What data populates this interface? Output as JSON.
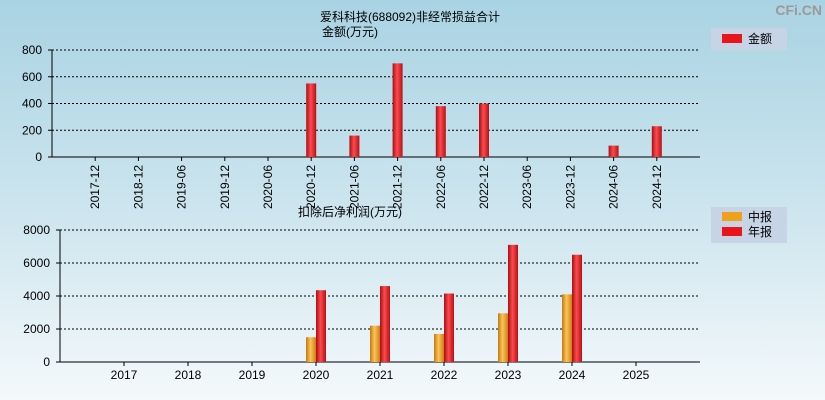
{
  "watermark": "CFi.CN",
  "colors": {
    "annual": "#e8151b",
    "interim": "#f0a11c",
    "legend_bg": "#c7d4e6"
  },
  "chart_data": [
    {
      "type": "bar",
      "title": "爱科科技(688092)非经常损益合计",
      "subtitle": "金额(万元)",
      "categories": [
        "2017-12",
        "2018-12",
        "2019-06",
        "2019-12",
        "2020-06",
        "2020-12",
        "2021-06",
        "2021-12",
        "2022-06",
        "2022-12",
        "2023-06",
        "2023-12",
        "2024-06",
        "2024-12"
      ],
      "series": [
        {
          "name": "金额",
          "values": [
            0,
            0,
            0,
            0,
            0,
            550,
            160,
            700,
            380,
            400,
            0,
            0,
            85,
            230
          ]
        }
      ],
      "ylim": [
        0,
        800
      ],
      "yticks": [
        "0",
        "200",
        "400",
        "600",
        "800"
      ],
      "grid": true,
      "legend": "top-right"
    },
    {
      "type": "bar",
      "title": "扣除后净利润(万元)",
      "categories": [
        "2017",
        "2018",
        "2019",
        "2020",
        "2021",
        "2022",
        "2023",
        "2024",
        "2025"
      ],
      "series": [
        {
          "name": "中报",
          "values": [
            0,
            0,
            0,
            1500,
            2200,
            1700,
            2950,
            4100,
            0
          ]
        },
        {
          "name": "年报",
          "values": [
            0,
            0,
            0,
            4350,
            4600,
            4150,
            7100,
            6500,
            0
          ]
        }
      ],
      "ylim": [
        0,
        8000
      ],
      "yticks": [
        "0",
        "2000",
        "4000",
        "6000",
        "8000"
      ],
      "grid": true,
      "legend": "top-right"
    }
  ]
}
